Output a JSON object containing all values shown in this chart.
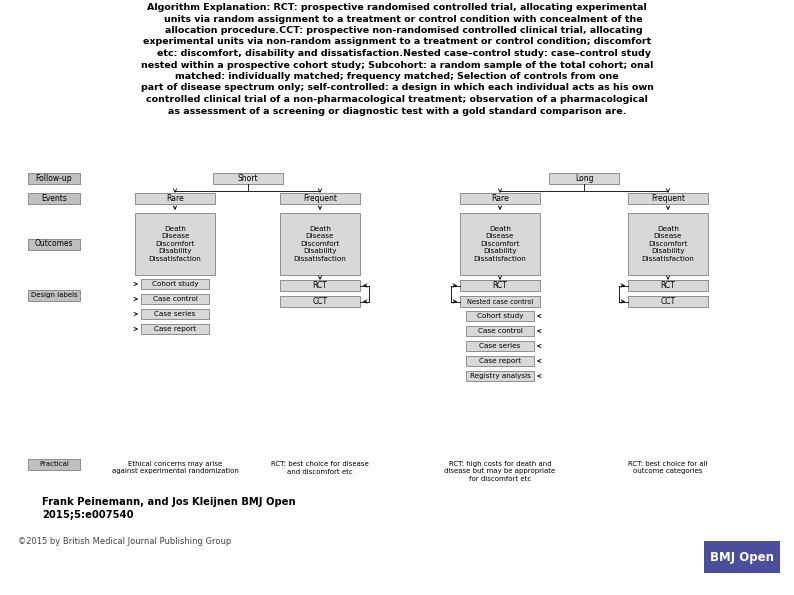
{
  "title_lines": [
    "Algorithm Explanation: RCT: prospective randomised controlled trial, allocating experimental",
    "    units via random assignment to a treatment or control condition with concealment of the",
    "    allocation procedure.CCT: prospective non-randomised controlled clinical trial, allocating",
    "experimental units via non-random assignment to a treatment or control condition; discomfort",
    "    etc: discomfort, disability and dissatisfaction.Nested case–control study: case–control study",
    "nested within a prospective cohort study; Subcohort: a random sample of the total cohort; onal",
    "matched: individually matched; frequency matched; Selection of controls from one",
    "part of disease spectrum only; self-controlled: a design in which each individual acts as his own",
    "controlled clinical trial of a non-pharmacological treatment; observation of a pharmacological",
    "as assessment of a screening or diagnostic test with a gold standard comparison are."
  ],
  "author_text": "Frank Peinemann, and Jos Kleijnen BMJ Open\n2015;5:e007540",
  "copyright_text": "©2015 by British Medical Journal Publishing Group",
  "bmj_color": "#4B4E9B",
  "background_color": "#FFFFFF",
  "outcome_items": "Death\nDisease\nDiscomfort\nDisability\nDissatisfaction",
  "practical_col1": "Ethical concerns may arise\nagainst experimental randomization",
  "practical_col2": "RCT: best choice for disease\nand discomfort etc",
  "practical_col3": "RCT: high costs for death and\ndisease but may be appropriate\nfor discomfort etc",
  "practical_col4": "RCT: best choice for all\noutcome categories"
}
